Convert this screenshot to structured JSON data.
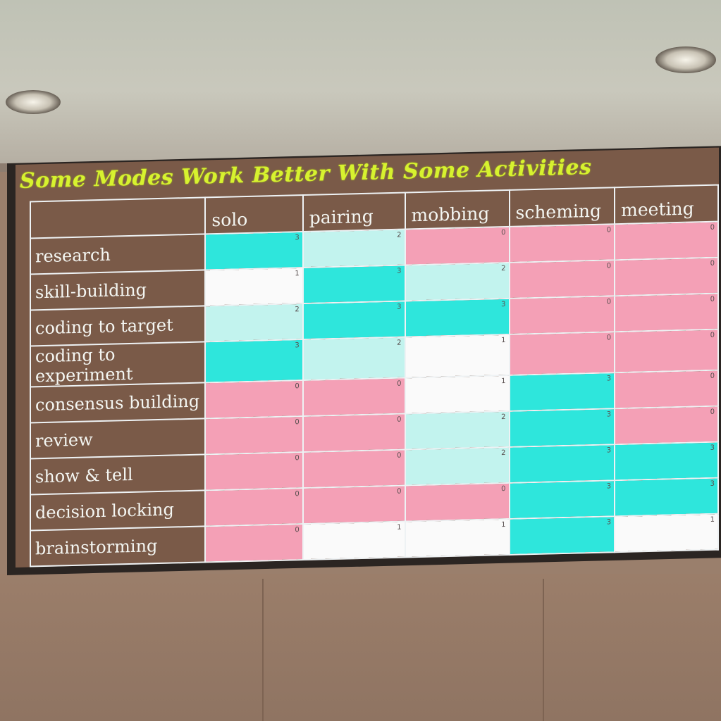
{
  "slide": {
    "title": "Some Modes Work Better With Some Activities"
  },
  "colors": {
    "score_3": "#2ee6dc",
    "score_2": "#c2f3ee",
    "score_1": "#fafafa",
    "score_0": "#f4a0b6",
    "title": "#d7f22f",
    "slide_background": "#7a5a48",
    "grid_lines": "#eef2f4"
  },
  "table": {
    "columns": [
      "solo",
      "pairing",
      "mobbing",
      "scheming",
      "meeting"
    ],
    "rows": [
      {
        "label": "research",
        "values": [
          3,
          2,
          0,
          0,
          0
        ]
      },
      {
        "label": "skill-building",
        "values": [
          1,
          3,
          2,
          0,
          0
        ]
      },
      {
        "label": "coding to target",
        "values": [
          2,
          3,
          3,
          0,
          0
        ]
      },
      {
        "label": "coding to experiment",
        "values": [
          3,
          2,
          1,
          0,
          0
        ]
      },
      {
        "label": "consensus building",
        "values": [
          0,
          0,
          1,
          3,
          0
        ]
      },
      {
        "label": "review",
        "values": [
          0,
          0,
          2,
          3,
          0
        ]
      },
      {
        "label": "show & tell",
        "values": [
          0,
          0,
          2,
          3,
          3
        ]
      },
      {
        "label": "decision locking",
        "values": [
          0,
          0,
          0,
          3,
          3
        ]
      },
      {
        "label": "brainstorming",
        "values": [
          0,
          1,
          1,
          3,
          1
        ]
      }
    ]
  }
}
